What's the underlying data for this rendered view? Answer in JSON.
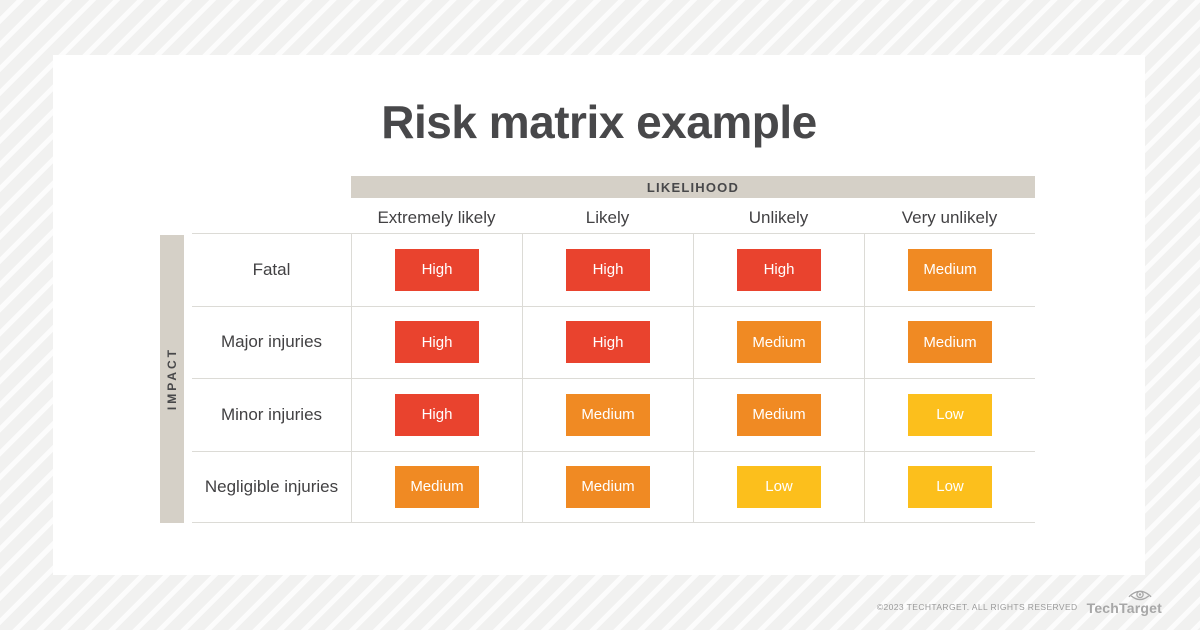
{
  "title": "Risk matrix example",
  "matrix": {
    "likelihood_label": "LIKELIHOOD",
    "impact_label": "IMPACT",
    "columns": [
      "Extremely likely",
      "Likely",
      "Unlikely",
      "Very unlikely"
    ],
    "rows": [
      {
        "label": "Fatal",
        "cells": [
          "High",
          "High",
          "High",
          "Medium"
        ]
      },
      {
        "label": "Major injuries",
        "cells": [
          "High",
          "High",
          "Medium",
          "Medium"
        ]
      },
      {
        "label": "Minor injuries",
        "cells": [
          "High",
          "Medium",
          "Medium",
          "Low"
        ]
      },
      {
        "label": "Negligible injuries",
        "cells": [
          "Medium",
          "Medium",
          "Low",
          "Low"
        ]
      }
    ],
    "level_colors": {
      "High": "#e9432e",
      "Medium": "#f08a23",
      "Low": "#fcbf1c"
    }
  },
  "footer": {
    "copyright": "©2023 TECHTARGET. ALL RIGHTS RESERVED",
    "logo_text": "TechTarget",
    "logo_icon": "eye-icon"
  }
}
